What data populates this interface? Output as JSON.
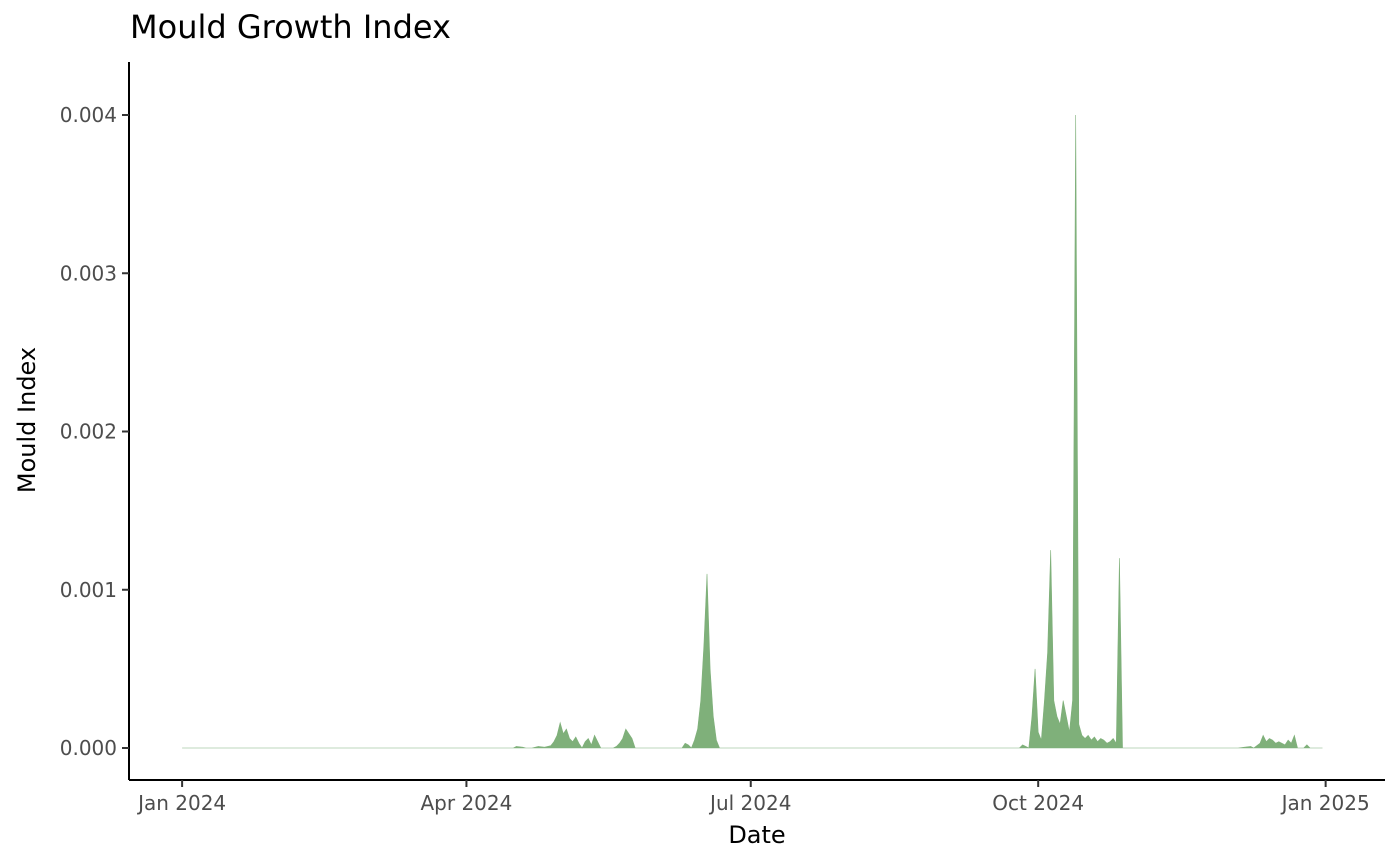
{
  "chart_data": {
    "type": "area",
    "title": "Mould Growth Index",
    "xlabel": "Date",
    "ylabel": "Mould Index",
    "x_range": [
      "2023-12-15",
      "2025-01-20"
    ],
    "ylim": [
      -0.0002,
      0.004
    ],
    "x_ticks": [
      {
        "date": "2024-01-01",
        "label": "Jan 2024"
      },
      {
        "date": "2024-04-01",
        "label": "Apr 2024"
      },
      {
        "date": "2024-07-01",
        "label": "Jul 2024"
      },
      {
        "date": "2024-10-01",
        "label": "Oct 2024"
      },
      {
        "date": "2025-01-01",
        "label": "Jan 2025"
      }
    ],
    "y_ticks": [
      {
        "value": 0.0,
        "label": "0.000"
      },
      {
        "value": 0.001,
        "label": "0.001"
      },
      {
        "value": 0.002,
        "label": "0.002"
      },
      {
        "value": 0.003,
        "label": "0.003"
      },
      {
        "value": 0.004,
        "label": "0.004"
      }
    ],
    "grid": false,
    "series": [
      {
        "color": "#7fb07a",
        "points": [
          [
            "2024-01-01",
            0.0
          ],
          [
            "2024-02-26",
            0.0
          ],
          [
            "2024-04-16",
            0.0
          ],
          [
            "2024-04-17",
            1e-05
          ],
          [
            "2024-04-19",
            5e-06
          ],
          [
            "2024-04-20",
            0.0
          ],
          [
            "2024-04-22",
            0.0
          ],
          [
            "2024-04-24",
            1e-05
          ],
          [
            "2024-04-26",
            5e-06
          ],
          [
            "2024-04-28",
            1.5e-05
          ],
          [
            "2024-04-29",
            4e-05
          ],
          [
            "2024-04-30",
            8e-05
          ],
          [
            "2024-05-01",
            0.00016
          ],
          [
            "2024-05-02",
            9e-05
          ],
          [
            "2024-05-03",
            0.00012
          ],
          [
            "2024-05-04",
            6e-05
          ],
          [
            "2024-05-05",
            4e-05
          ],
          [
            "2024-05-06",
            7e-05
          ],
          [
            "2024-05-07",
            3e-05
          ],
          [
            "2024-05-08",
            0.0
          ],
          [
            "2024-05-09",
            4e-05
          ],
          [
            "2024-05-10",
            6e-05
          ],
          [
            "2024-05-11",
            2e-05
          ],
          [
            "2024-05-12",
            8e-05
          ],
          [
            "2024-05-13",
            4e-05
          ],
          [
            "2024-05-14",
            0.0
          ],
          [
            "2024-05-18",
            0.0
          ],
          [
            "2024-05-19",
            1e-05
          ],
          [
            "2024-05-20",
            3e-05
          ],
          [
            "2024-05-21",
            6e-05
          ],
          [
            "2024-05-22",
            0.00012
          ],
          [
            "2024-05-23",
            9e-05
          ],
          [
            "2024-05-24",
            6e-05
          ],
          [
            "2024-05-25",
            0.0
          ],
          [
            "2024-06-09",
            0.0
          ],
          [
            "2024-06-10",
            3e-05
          ],
          [
            "2024-06-11",
            2e-05
          ],
          [
            "2024-06-12",
            0.0
          ],
          [
            "2024-06-13",
            5e-05
          ],
          [
            "2024-06-14",
            0.00012
          ],
          [
            "2024-06-15",
            0.0003
          ],
          [
            "2024-06-16",
            0.00065
          ],
          [
            "2024-06-17",
            0.0011
          ],
          [
            "2024-06-18",
            0.0005
          ],
          [
            "2024-06-19",
            0.0002
          ],
          [
            "2024-06-20",
            5e-05
          ],
          [
            "2024-06-21",
            0.0
          ],
          [
            "2024-09-25",
            0.0
          ],
          [
            "2024-09-26",
            2e-05
          ],
          [
            "2024-09-27",
            1e-05
          ],
          [
            "2024-09-28",
            0.0
          ],
          [
            "2024-09-29",
            0.0002
          ],
          [
            "2024-09-30",
            0.0005
          ],
          [
            "2024-10-01",
            0.0001
          ],
          [
            "2024-10-02",
            5e-05
          ],
          [
            "2024-10-03",
            0.0003
          ],
          [
            "2024-10-04",
            0.0006
          ],
          [
            "2024-10-05",
            0.00125
          ],
          [
            "2024-10-06",
            0.0003
          ],
          [
            "2024-10-07",
            0.0002
          ],
          [
            "2024-10-08",
            0.00015
          ],
          [
            "2024-10-09",
            0.0003
          ],
          [
            "2024-10-10",
            0.0002
          ],
          [
            "2024-10-11",
            0.0001
          ],
          [
            "2024-10-12",
            0.0003
          ],
          [
            "2024-10-13",
            0.004
          ],
          [
            "2024-10-14",
            0.00015
          ],
          [
            "2024-10-15",
            8e-05
          ],
          [
            "2024-10-16",
            6e-05
          ],
          [
            "2024-10-17",
            8e-05
          ],
          [
            "2024-10-18",
            5e-05
          ],
          [
            "2024-10-19",
            7e-05
          ],
          [
            "2024-10-20",
            4e-05
          ],
          [
            "2024-10-21",
            6e-05
          ],
          [
            "2024-10-22",
            5e-05
          ],
          [
            "2024-10-23",
            3e-05
          ],
          [
            "2024-10-24",
            4e-05
          ],
          [
            "2024-10-25",
            6e-05
          ],
          [
            "2024-10-26",
            3e-05
          ],
          [
            "2024-10-27",
            0.0012
          ],
          [
            "2024-10-28",
            0.0
          ],
          [
            "2024-12-04",
            0.0
          ],
          [
            "2024-12-06",
            5e-06
          ],
          [
            "2024-12-08",
            1e-05
          ],
          [
            "2024-12-09",
            0.0
          ],
          [
            "2024-12-11",
            3e-05
          ],
          [
            "2024-12-12",
            8e-05
          ],
          [
            "2024-12-13",
            4e-05
          ],
          [
            "2024-12-14",
            6e-05
          ],
          [
            "2024-12-15",
            5e-05
          ],
          [
            "2024-12-16",
            3e-05
          ],
          [
            "2024-12-17",
            4e-05
          ],
          [
            "2024-12-18",
            3e-05
          ],
          [
            "2024-12-19",
            2e-05
          ],
          [
            "2024-12-20",
            5e-05
          ],
          [
            "2024-12-21",
            3e-05
          ],
          [
            "2024-12-22",
            8e-05
          ],
          [
            "2024-12-23",
            0.0
          ],
          [
            "2024-12-25",
            0.0
          ],
          [
            "2024-12-26",
            2e-05
          ],
          [
            "2024-12-27",
            0.0
          ],
          [
            "2024-12-31",
            0.0
          ]
        ]
      }
    ]
  }
}
